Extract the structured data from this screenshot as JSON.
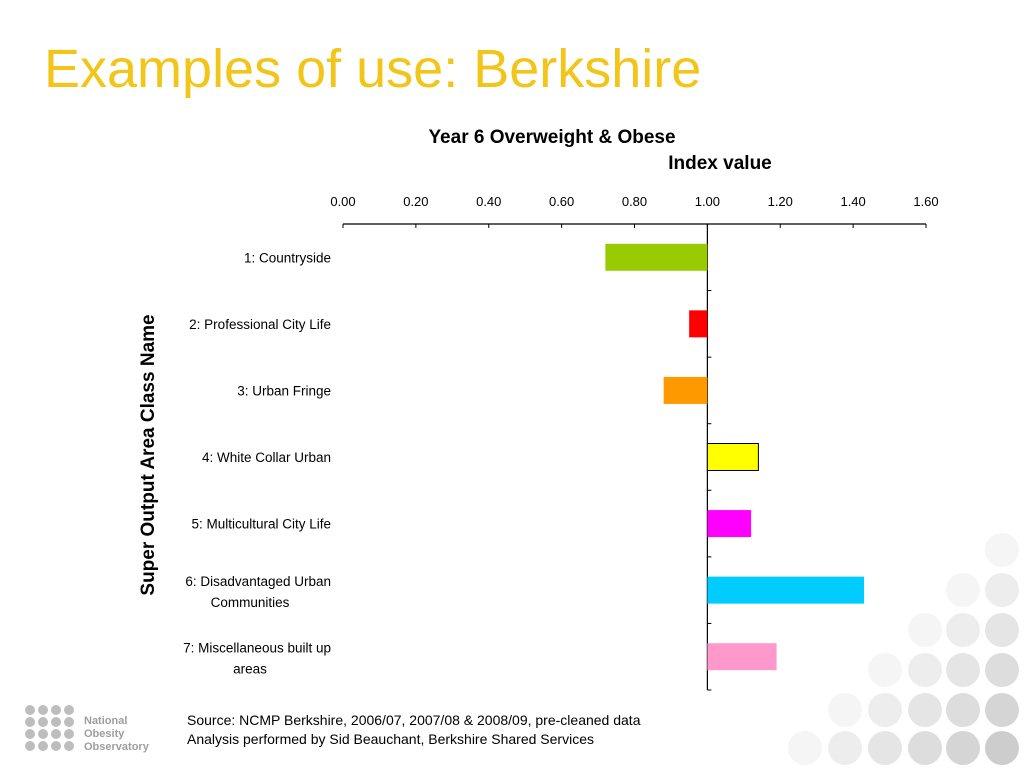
{
  "slide": {
    "title": "Examples of use: Berkshire"
  },
  "chart_data": {
    "type": "bar",
    "orientation": "horizontal",
    "title": "Year 6 Overweight & Obese",
    "xlabel": "Index value",
    "ylabel": "Super Output Area Class Name",
    "xlim": [
      0,
      1.6
    ],
    "baseline": 1.0,
    "x_ticks": [
      "0.00",
      "0.20",
      "0.40",
      "0.60",
      "0.80",
      "1.00",
      "1.20",
      "1.40",
      "1.60"
    ],
    "x_axis_position": "top",
    "grid": false,
    "legend": "none",
    "categories": [
      [
        "1: Countryside"
      ],
      [
        "2: Professional City Life"
      ],
      [
        "3: Urban Fringe"
      ],
      [
        "4: White Collar Urban"
      ],
      [
        "5: Multicultural City Life"
      ],
      [
        "6: Disadvantaged Urban",
        "Communities"
      ],
      [
        "7: Miscellaneous built up",
        "areas"
      ]
    ],
    "values": [
      0.72,
      0.95,
      0.88,
      1.14,
      1.12,
      1.43,
      1.19
    ],
    "colors": [
      "#99cc00",
      "#ff0000",
      "#ff9900",
      "#ffff00",
      "#ff00ff",
      "#00ccff",
      "#ff99cc"
    ]
  },
  "footer": {
    "source_line": "Source: NCMP Berkshire, 2006/07, 2007/08 & 2008/09, pre-cleaned data",
    "analysis_line": "Analysis performed by Sid Beauchant, Berkshire Shared Services"
  },
  "logo": {
    "line1": "National",
    "line2": "Obesity",
    "line3": "Observatory"
  },
  "theme": {
    "title_color": "#f2c51a",
    "logo_dots": "#bdbdbd",
    "deco_circles": "#e6e6e6"
  }
}
